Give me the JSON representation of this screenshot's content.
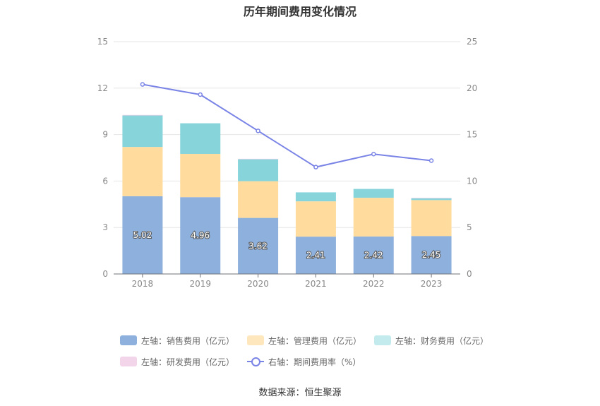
{
  "title": "历年期间费用变化情况",
  "source": "数据来源：恒生聚源",
  "legend": [
    {
      "label": "左轴：销售费用（亿元）",
      "color": "#8eb0dc"
    },
    {
      "label": "左轴：管理费用（亿元）",
      "color": "#ffdc9e"
    },
    {
      "label": "左轴：财务费用（亿元）",
      "color": "#87d5db"
    },
    {
      "label": "左轴：研发费用（亿元）",
      "color": "#f3d5ea"
    },
    {
      "label": "右轴：期间费用率（%）",
      "color": "#7a84e6"
    }
  ],
  "chart_data": {
    "type": "bar",
    "categories": [
      "2018",
      "2019",
      "2020",
      "2021",
      "2022",
      "2023"
    ],
    "series": [
      {
        "name": "左轴：销售费用（亿元）",
        "values": [
          5.02,
          4.96,
          3.62,
          2.41,
          2.42,
          2.45
        ],
        "color": "#8eb0dc",
        "labels": [
          "5.02",
          "4.96",
          "3.62",
          "2.41",
          "2.42",
          "2.45"
        ]
      },
      {
        "name": "左轴：管理费用（亿元）",
        "values": [
          3.18,
          2.79,
          2.37,
          2.28,
          2.5,
          2.32
        ],
        "color": "#ffdc9e"
      },
      {
        "name": "左轴：财务费用（亿元）",
        "values": [
          2.04,
          1.98,
          1.42,
          0.58,
          0.57,
          0.12
        ],
        "color": "#87d5db"
      },
      {
        "name": "左轴：研发费用（亿元）",
        "values": [
          0.03,
          0.0,
          0.03,
          0.0,
          0.0,
          0.03
        ],
        "color": "#f3d5ea"
      }
    ],
    "line": {
      "name": "右轴：期间费用率（%）",
      "values": [
        20.4,
        19.3,
        15.4,
        11.5,
        12.9,
        12.2
      ],
      "color": "#7a84e6"
    },
    "left_axis": {
      "ylim": [
        0,
        15
      ],
      "ticks": [
        "0",
        "3",
        "6",
        "9",
        "12",
        "15"
      ]
    },
    "right_axis": {
      "ylim": [
        0,
        25
      ],
      "ticks": [
        "0",
        "5",
        "10",
        "15",
        "20",
        "25"
      ]
    },
    "grid": true,
    "legend_position": "bottom"
  }
}
